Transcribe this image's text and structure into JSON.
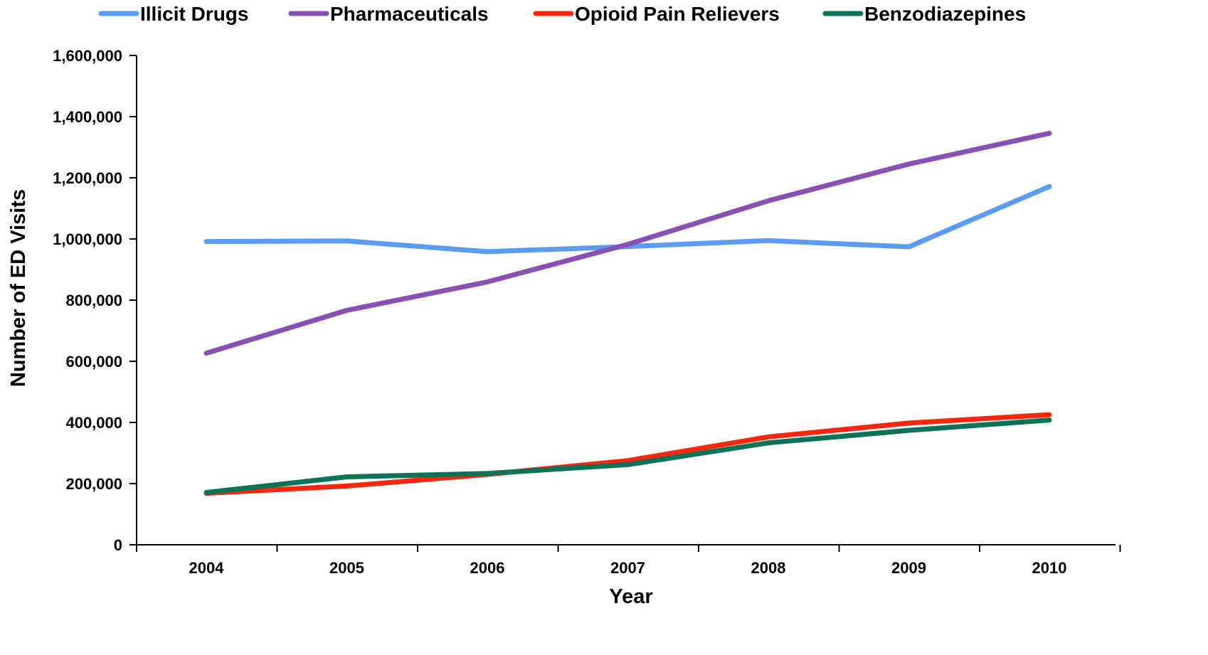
{
  "chart_data": {
    "type": "line",
    "title": "",
    "xlabel": "Year",
    "ylabel": "Number of ED Visits",
    "categories": [
      "2004",
      "2005",
      "2006",
      "2007",
      "2008",
      "2009",
      "2010"
    ],
    "ylim": [
      0,
      1600000
    ],
    "yticks": [
      0,
      200000,
      400000,
      600000,
      800000,
      1000000,
      1200000,
      1400000,
      1600000
    ],
    "ytick_labels": [
      "0",
      "200,000",
      "400,000",
      "600,000",
      "800,000",
      "1,000,000",
      "1,200,000",
      "1,400,000",
      "1,600,000"
    ],
    "grid": false,
    "legend_position": "top",
    "series": [
      {
        "name": "Illicit Drugs",
        "color": "#5b9cf2",
        "values": [
          991640,
          993379,
          958366,
          975144,
          994548,
          974392,
          1171290
        ]
      },
      {
        "name": "Pharmaceuticals",
        "color": "#8750b5",
        "values": [
          626470,
          766474,
          859467,
          982286,
          1124781,
          1244872,
          1345645
        ]
      },
      {
        "name": "Opioid Pain Relievers",
        "color": "#f5270f",
        "values": [
          168359,
          192128,
          230012,
          275012,
          352712,
          398020,
          425247
        ]
      },
      {
        "name": "Benzodiazepines",
        "color": "#0c7356",
        "values": [
          170871,
          222052,
          233108,
          262037,
          333147,
          374134,
          408021
        ]
      }
    ]
  }
}
